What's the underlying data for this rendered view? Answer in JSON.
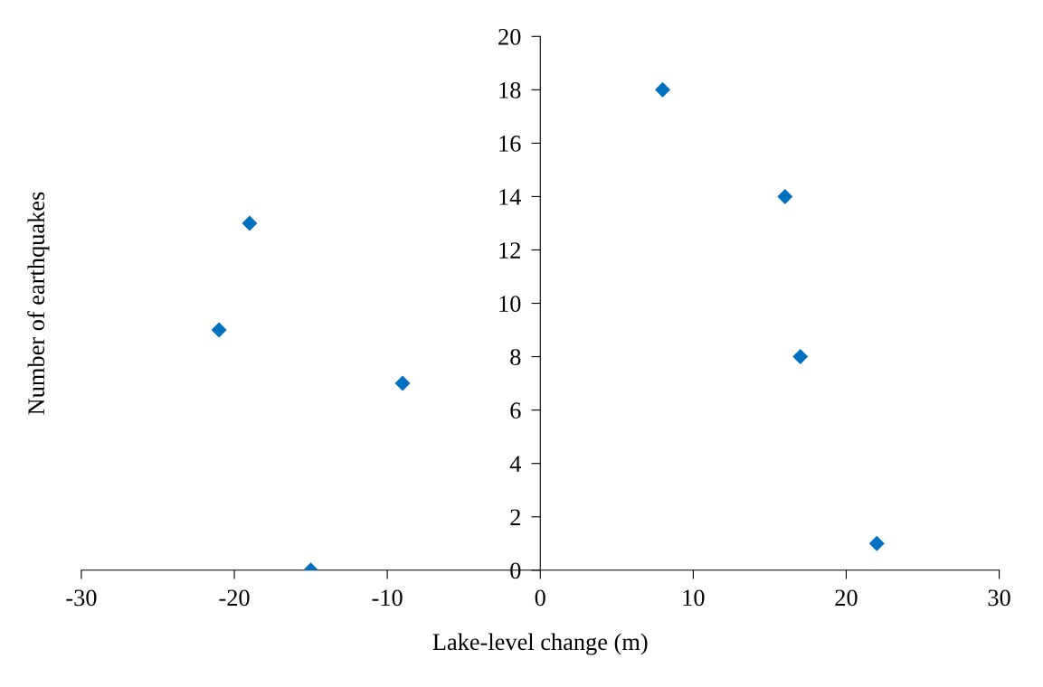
{
  "chart_data": {
    "type": "scatter",
    "xlabel": "Lake-level change (m)",
    "ylabel": "Number of earthquakes",
    "x": [
      -21,
      -19,
      -15,
      -9,
      8,
      16,
      17,
      22
    ],
    "series": [
      {
        "color": "#0070c0",
        "values": [
          9,
          13,
          0,
          7,
          18,
          14,
          8,
          1
        ]
      }
    ],
    "marker": "diamond",
    "grid": false,
    "legend": false,
    "xlim": [
      -30,
      30
    ],
    "xticks": [
      -30,
      -20,
      -10,
      0,
      10,
      20,
      30
    ],
    "ylim": [
      0,
      20
    ],
    "yticks": [
      0,
      2,
      4,
      6,
      8,
      10,
      12,
      14,
      16,
      18,
      20
    ]
  }
}
